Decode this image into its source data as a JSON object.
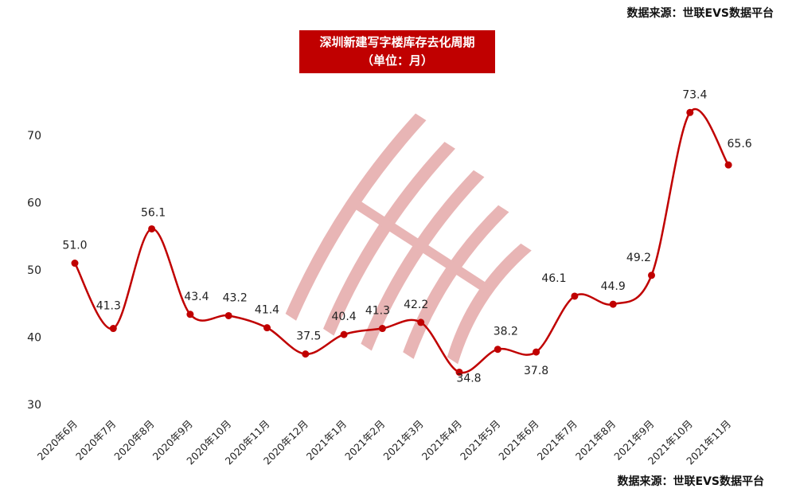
{
  "source_top": "数据来源：世联EVS数据平台",
  "source_bottom": "数据来源：世联EVS数据平台",
  "colors": {
    "line": "#c00000",
    "title_bg": "#c00000",
    "watermark": "#e8b5b5"
  },
  "chart_data": {
    "type": "line",
    "title": "深圳新建写字楼库存去化周期",
    "subtitle": "（单位：月）",
    "categories": [
      "2020年6月",
      "2020年7月",
      "2020年8月",
      "2020年9月",
      "2020年10月",
      "2020年11月",
      "2020年12月",
      "2021年1月",
      "2021年2月",
      "2021年3月",
      "2021年4月",
      "2021年5月",
      "2021年6月",
      "2021年7月",
      "2021年8月",
      "2021年9月",
      "2021年10月",
      "2021年11月"
    ],
    "values": [
      51.0,
      41.3,
      56.1,
      43.4,
      43.2,
      41.4,
      37.5,
      40.4,
      41.3,
      42.2,
      34.8,
      38.2,
      37.8,
      46.1,
      44.9,
      49.2,
      73.4,
      65.6
    ],
    "value_labels": [
      "51.0",
      "41.3",
      "56.1",
      "43.4",
      "43.2",
      "41.4",
      "37.5",
      "40.4",
      "41.3",
      "42.2",
      "34.8",
      "38.2",
      "37.8",
      "46.1",
      "44.9",
      "49.2",
      "73.4",
      "65.6"
    ],
    "yticks": [
      "30",
      "40",
      "50",
      "60",
      "70"
    ],
    "ylim": [
      30,
      70
    ],
    "smooth": true,
    "grid": false,
    "legend": "none"
  }
}
